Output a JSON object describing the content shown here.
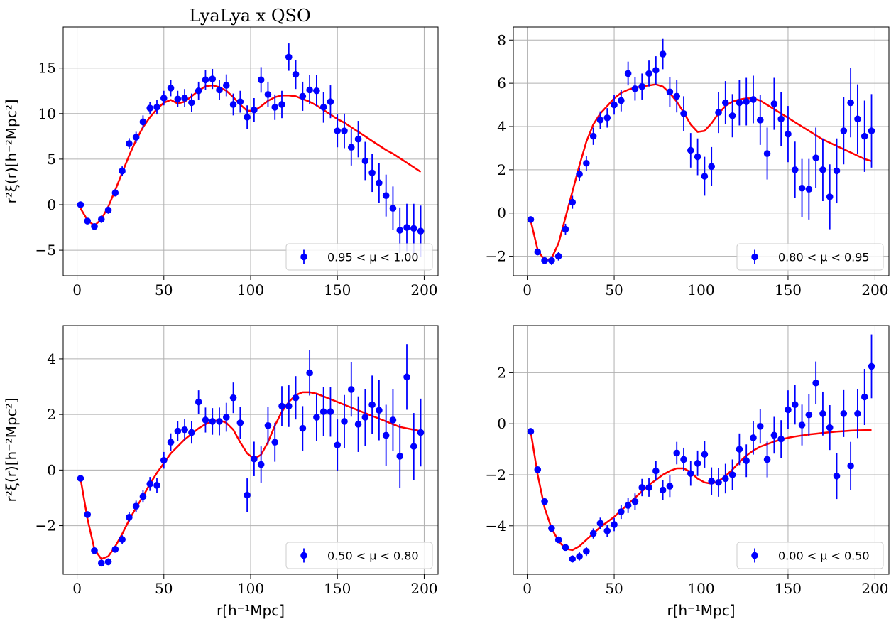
{
  "figure": {
    "title": "LyaLya x QSO"
  },
  "chart_data": [
    {
      "type": "scatter",
      "legend": "0.95 < μ < 1.00",
      "legend_position": "lower-right",
      "ylabel": "r²ξ(r)[h⁻²Mpc²]",
      "xlabel": "",
      "xlim": [
        -8,
        208
      ],
      "ylim": [
        -7.8,
        19.5
      ],
      "xticks": [
        0,
        50,
        100,
        150,
        200
      ],
      "yticks": [
        -5,
        0,
        5,
        10,
        15
      ],
      "grid": true,
      "data": {
        "x": [
          2,
          6,
          10,
          14,
          18,
          22,
          26,
          30,
          34,
          38,
          42,
          46,
          50,
          54,
          58,
          62,
          66,
          70,
          74,
          78,
          82,
          86,
          90,
          94,
          98,
          102,
          106,
          110,
          114,
          118,
          122,
          126,
          130,
          134,
          138,
          142,
          146,
          150,
          154,
          158,
          162,
          166,
          170,
          174,
          178,
          182,
          186,
          190,
          194,
          198
        ],
        "y": [
          0.0,
          -1.8,
          -2.4,
          -1.6,
          -0.6,
          1.3,
          3.7,
          6.7,
          7.4,
          9.1,
          10.6,
          10.7,
          11.7,
          12.8,
          11.6,
          11.7,
          11.2,
          12.5,
          13.7,
          13.8,
          12.6,
          13.1,
          11.0,
          11.3,
          9.6,
          10.4,
          13.7,
          12.1,
          10.7,
          11.0,
          16.2,
          14.3,
          11.9,
          12.6,
          12.5,
          10.7,
          11.3,
          8.1,
          8.1,
          6.3,
          7.2,
          4.8,
          3.5,
          2.4,
          1.0,
          -0.4,
          -2.8,
          -2.5,
          -2.6,
          -2.9
        ],
        "err": [
          0.3,
          0.3,
          0.3,
          0.4,
          0.4,
          0.4,
          0.5,
          0.6,
          0.6,
          0.7,
          0.7,
          0.8,
          0.8,
          0.9,
          0.9,
          1.0,
          1.0,
          1.0,
          1.1,
          1.1,
          1.1,
          1.2,
          1.2,
          1.2,
          1.3,
          1.3,
          1.4,
          1.4,
          1.4,
          1.5,
          1.5,
          1.6,
          1.6,
          1.6,
          1.7,
          1.7,
          1.8,
          1.8,
          1.9,
          2.0,
          2.0,
          2.1,
          2.1,
          2.2,
          2.3,
          2.4,
          2.5,
          2.6,
          2.7,
          2.8
        ]
      },
      "model": {
        "x": [
          2,
          6,
          10,
          14,
          18,
          22,
          26,
          30,
          34,
          38,
          42,
          46,
          50,
          54,
          58,
          62,
          66,
          70,
          74,
          78,
          82,
          86,
          90,
          94,
          98,
          102,
          106,
          110,
          114,
          118,
          122,
          126,
          130,
          134,
          138,
          142,
          146,
          150,
          154,
          158,
          162,
          166,
          170,
          174,
          178,
          182,
          186,
          190,
          194,
          198
        ],
        "y": [
          -0.4,
          -1.7,
          -2.3,
          -1.6,
          -0.2,
          1.6,
          3.5,
          5.4,
          7.1,
          8.5,
          9.6,
          10.5,
          11.2,
          11.5,
          11.1,
          11.3,
          11.9,
          12.5,
          13.0,
          13.1,
          12.9,
          12.5,
          11.8,
          11.0,
          10.3,
          10.3,
          10.8,
          11.4,
          11.8,
          12.0,
          12.0,
          11.9,
          11.6,
          11.3,
          10.9,
          10.4,
          9.9,
          9.4,
          9.0,
          8.5,
          8.0,
          7.5,
          7.0,
          6.5,
          6.0,
          5.6,
          5.1,
          4.6,
          4.1,
          3.6
        ]
      }
    },
    {
      "type": "scatter",
      "legend": "0.80 < μ < 0.95",
      "legend_position": "lower-right",
      "ylabel": "",
      "xlabel": "",
      "xlim": [
        -8,
        208
      ],
      "ylim": [
        -2.9,
        8.6
      ],
      "xticks": [
        0,
        50,
        100,
        150,
        200
      ],
      "yticks": [
        -2,
        0,
        2,
        4,
        6,
        8
      ],
      "grid": true,
      "data": {
        "x": [
          2,
          6,
          10,
          14,
          18,
          22,
          26,
          30,
          34,
          38,
          42,
          46,
          50,
          54,
          58,
          62,
          66,
          70,
          74,
          78,
          82,
          86,
          90,
          94,
          98,
          102,
          106,
          110,
          114,
          118,
          122,
          126,
          130,
          134,
          138,
          142,
          146,
          150,
          154,
          158,
          162,
          166,
          170,
          174,
          178,
          182,
          186,
          190,
          194,
          198
        ],
        "y": [
          -0.3,
          -1.8,
          -2.2,
          -2.2,
          -2.0,
          -0.75,
          0.5,
          1.8,
          2.3,
          3.55,
          4.3,
          4.4,
          5.0,
          5.2,
          6.45,
          5.75,
          5.85,
          6.45,
          6.6,
          7.35,
          5.6,
          5.4,
          4.6,
          2.9,
          2.6,
          1.7,
          2.15,
          4.65,
          5.1,
          4.5,
          5.1,
          5.15,
          5.25,
          4.3,
          2.75,
          5.05,
          4.35,
          3.65,
          2.0,
          1.15,
          1.1,
          2.55,
          2.0,
          0.75,
          1.95,
          3.8,
          5.1,
          4.35,
          3.55,
          3.8
        ],
        "err": [
          0.1,
          0.15,
          0.15,
          0.2,
          0.2,
          0.25,
          0.3,
          0.3,
          0.35,
          0.4,
          0.4,
          0.45,
          0.45,
          0.5,
          0.55,
          0.55,
          0.6,
          0.6,
          0.65,
          0.7,
          0.7,
          0.75,
          0.8,
          0.8,
          0.85,
          0.9,
          0.9,
          0.95,
          1.0,
          1.0,
          1.05,
          1.1,
          1.1,
          1.15,
          1.2,
          1.2,
          1.25,
          1.3,
          1.3,
          1.35,
          1.4,
          1.4,
          1.45,
          1.5,
          1.5,
          1.55,
          1.6,
          1.6,
          1.65,
          1.7
        ]
      },
      "model": {
        "x": [
          2,
          6,
          10,
          14,
          18,
          22,
          26,
          30,
          34,
          38,
          42,
          46,
          50,
          54,
          58,
          62,
          66,
          70,
          74,
          78,
          82,
          86,
          90,
          94,
          98,
          102,
          106,
          110,
          114,
          118,
          122,
          126,
          130,
          134,
          138,
          142,
          146,
          150,
          154,
          158,
          162,
          166,
          170,
          174,
          178,
          182,
          186,
          190,
          194,
          198
        ],
        "y": [
          -0.35,
          -1.7,
          -2.2,
          -2.1,
          -1.4,
          -0.2,
          1.0,
          2.2,
          3.3,
          4.1,
          4.6,
          4.95,
          5.3,
          5.55,
          5.7,
          5.8,
          5.85,
          5.9,
          5.95,
          5.85,
          5.55,
          5.15,
          4.65,
          4.1,
          3.75,
          3.8,
          4.15,
          4.6,
          4.95,
          5.15,
          5.25,
          5.3,
          5.3,
          5.2,
          5.0,
          4.8,
          4.6,
          4.4,
          4.2,
          4.0,
          3.8,
          3.6,
          3.4,
          3.25,
          3.1,
          2.95,
          2.8,
          2.65,
          2.5,
          2.4
        ]
      }
    },
    {
      "type": "scatter",
      "legend": "0.50 < μ < 0.80",
      "legend_position": "lower-right",
      "ylabel": "r²ξ(r)[h⁻²Mpc²]",
      "xlabel": "r[h⁻¹Mpc]",
      "xlim": [
        -8,
        208
      ],
      "ylim": [
        -3.75,
        5.2
      ],
      "xticks": [
        0,
        50,
        100,
        150,
        200
      ],
      "yticks": [
        -2,
        0,
        2,
        4
      ],
      "grid": true,
      "data": {
        "x": [
          2,
          6,
          10,
          14,
          18,
          22,
          26,
          30,
          34,
          38,
          42,
          46,
          50,
          54,
          58,
          62,
          66,
          70,
          74,
          78,
          82,
          86,
          90,
          94,
          98,
          102,
          106,
          110,
          114,
          118,
          122,
          126,
          130,
          134,
          138,
          142,
          146,
          150,
          154,
          158,
          162,
          166,
          170,
          174,
          178,
          182,
          186,
          190,
          194,
          198
        ],
        "y": [
          -0.3,
          -1.6,
          -2.9,
          -3.35,
          -3.3,
          -2.85,
          -2.5,
          -1.7,
          -1.3,
          -0.95,
          -0.5,
          -0.55,
          0.35,
          1.0,
          1.4,
          1.45,
          1.35,
          2.45,
          1.8,
          1.75,
          1.75,
          1.9,
          2.6,
          1.7,
          -0.9,
          0.4,
          0.2,
          1.6,
          1.0,
          2.3,
          2.3,
          2.6,
          1.5,
          3.5,
          1.9,
          2.1,
          2.1,
          0.9,
          1.75,
          2.9,
          1.65,
          1.9,
          2.35,
          2.15,
          1.25,
          1.8,
          0.5,
          3.35,
          0.85,
          1.35
        ],
        "err": [
          0.1,
          0.1,
          0.1,
          0.1,
          0.12,
          0.12,
          0.15,
          0.18,
          0.2,
          0.22,
          0.25,
          0.27,
          0.3,
          0.32,
          0.35,
          0.38,
          0.4,
          0.42,
          0.45,
          0.48,
          0.5,
          0.52,
          0.55,
          0.58,
          0.6,
          0.62,
          0.65,
          0.68,
          0.7,
          0.72,
          0.75,
          0.78,
          0.8,
          0.82,
          0.85,
          0.88,
          0.9,
          0.92,
          0.95,
          0.98,
          1.0,
          1.02,
          1.05,
          1.08,
          1.1,
          1.12,
          1.15,
          1.18,
          1.2,
          1.22
        ]
      },
      "model": {
        "x": [
          2,
          6,
          10,
          14,
          18,
          22,
          26,
          30,
          34,
          38,
          42,
          46,
          50,
          54,
          58,
          62,
          66,
          70,
          74,
          78,
          82,
          86,
          90,
          94,
          98,
          102,
          106,
          110,
          114,
          118,
          122,
          126,
          130,
          134,
          138,
          142,
          146,
          150,
          154,
          158,
          162,
          166,
          170,
          174,
          178,
          182,
          186,
          190,
          194,
          198
        ],
        "y": [
          -0.3,
          -1.75,
          -2.85,
          -3.2,
          -3.1,
          -2.75,
          -2.3,
          -1.8,
          -1.35,
          -0.95,
          -0.5,
          -0.1,
          0.25,
          0.6,
          0.85,
          1.1,
          1.3,
          1.5,
          1.65,
          1.75,
          1.8,
          1.7,
          1.45,
          1.0,
          0.6,
          0.4,
          0.55,
          1.0,
          1.6,
          2.1,
          2.45,
          2.7,
          2.8,
          2.8,
          2.75,
          2.65,
          2.55,
          2.45,
          2.35,
          2.25,
          2.15,
          2.05,
          1.95,
          1.85,
          1.75,
          1.65,
          1.55,
          1.5,
          1.45,
          1.4
        ]
      }
    },
    {
      "type": "scatter",
      "legend": "0.00 < μ < 0.50",
      "legend_position": "lower-right",
      "ylabel": "",
      "xlabel": "r[h⁻¹Mpc]",
      "xlim": [
        -8,
        208
      ],
      "ylim": [
        -5.9,
        3.85
      ],
      "xticks": [
        0,
        50,
        100,
        150,
        200
      ],
      "yticks": [
        -4,
        -2,
        0,
        2
      ],
      "grid": true,
      "data": {
        "x": [
          2,
          6,
          10,
          14,
          18,
          22,
          26,
          30,
          34,
          38,
          42,
          46,
          50,
          54,
          58,
          62,
          66,
          70,
          74,
          78,
          82,
          86,
          90,
          94,
          98,
          102,
          106,
          110,
          114,
          118,
          122,
          126,
          130,
          134,
          138,
          142,
          146,
          150,
          154,
          158,
          162,
          166,
          170,
          174,
          178,
          182,
          186,
          190,
          194,
          198
        ],
        "y": [
          -0.3,
          -1.8,
          -3.05,
          -4.1,
          -4.55,
          -4.85,
          -5.3,
          -5.2,
          -5.0,
          -4.3,
          -3.9,
          -4.2,
          -3.95,
          -3.45,
          -3.2,
          -3.05,
          -2.5,
          -2.5,
          -1.85,
          -2.6,
          -2.45,
          -1.15,
          -1.4,
          -1.95,
          -1.55,
          -1.2,
          -2.25,
          -2.3,
          -2.15,
          -2.0,
          -1.0,
          -1.45,
          -0.55,
          -0.1,
          -1.4,
          -0.45,
          -0.6,
          0.55,
          0.75,
          -0.05,
          0.35,
          1.6,
          0.4,
          -0.15,
          -2.05,
          0.4,
          -1.65,
          0.4,
          1.05,
          2.25
        ],
        "err": [
          0.08,
          0.1,
          0.1,
          0.1,
          0.12,
          0.12,
          0.14,
          0.16,
          0.18,
          0.2,
          0.22,
          0.24,
          0.26,
          0.28,
          0.3,
          0.32,
          0.34,
          0.36,
          0.38,
          0.4,
          0.42,
          0.44,
          0.46,
          0.48,
          0.5,
          0.52,
          0.54,
          0.56,
          0.58,
          0.6,
          0.62,
          0.64,
          0.66,
          0.68,
          0.7,
          0.72,
          0.74,
          0.76,
          0.78,
          0.8,
          0.82,
          0.84,
          0.86,
          0.88,
          0.9,
          0.92,
          0.94,
          0.96,
          1.1,
          1.25
        ]
      },
      "model": {
        "x": [
          2,
          6,
          10,
          14,
          18,
          22,
          26,
          30,
          34,
          38,
          42,
          46,
          50,
          54,
          58,
          62,
          66,
          70,
          74,
          78,
          82,
          86,
          90,
          94,
          98,
          102,
          106,
          110,
          114,
          118,
          122,
          126,
          130,
          134,
          138,
          142,
          146,
          150,
          154,
          158,
          162,
          166,
          170,
          174,
          178,
          182,
          186,
          190,
          194,
          198
        ],
        "y": [
          -0.3,
          -2.0,
          -3.3,
          -4.1,
          -4.6,
          -4.9,
          -4.95,
          -4.8,
          -4.55,
          -4.3,
          -4.05,
          -3.85,
          -3.65,
          -3.4,
          -3.15,
          -2.9,
          -2.65,
          -2.4,
          -2.2,
          -2.0,
          -1.85,
          -1.75,
          -1.75,
          -1.9,
          -2.15,
          -2.3,
          -2.35,
          -2.25,
          -2.05,
          -1.8,
          -1.5,
          -1.25,
          -1.05,
          -0.9,
          -0.8,
          -0.7,
          -0.62,
          -0.55,
          -0.5,
          -0.46,
          -0.42,
          -0.39,
          -0.36,
          -0.33,
          -0.31,
          -0.29,
          -0.27,
          -0.26,
          -0.25,
          -0.24
        ]
      }
    }
  ],
  "colors": {
    "data": "#0000ff",
    "model": "#ff0000",
    "grid": "#b0b0b0",
    "axes": "#000000",
    "legend_border": "#cccccc"
  }
}
